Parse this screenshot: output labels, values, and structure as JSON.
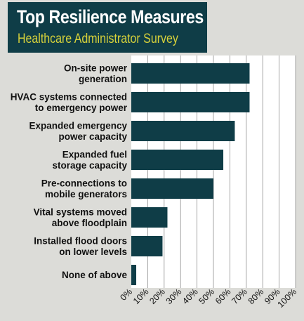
{
  "chart_data": {
    "type": "bar",
    "orientation": "horizontal",
    "title": "Top Resilience Measures",
    "subtitle": "Healthcare Administrator Survey",
    "categories": [
      [
        "On-site power",
        "generation"
      ],
      [
        "HVAC systems connected",
        "to emergency power"
      ],
      [
        "Expanded emergency",
        "power capacity"
      ],
      [
        "Expanded fuel",
        "storage capacity"
      ],
      [
        "Pre-connections to",
        "mobile generators"
      ],
      [
        "Vital systems moved",
        "above floodplain"
      ],
      [
        "Installed flood doors",
        "on lower levels"
      ],
      [
        "None of above"
      ]
    ],
    "values": [
      72,
      72,
      63,
      56,
      50,
      22,
      19,
      3
    ],
    "xlim": [
      0,
      100
    ],
    "xticks": [
      "0%",
      "10%",
      "20%",
      "30%",
      "40%",
      "50%",
      "60%",
      "70%",
      "80%",
      "90%",
      "100%"
    ],
    "grid": true,
    "colors": {
      "bar": "#0f3d47",
      "background": "#dcdcd8",
      "plot": "#ffffff",
      "grid": "#8e8e8e"
    }
  }
}
